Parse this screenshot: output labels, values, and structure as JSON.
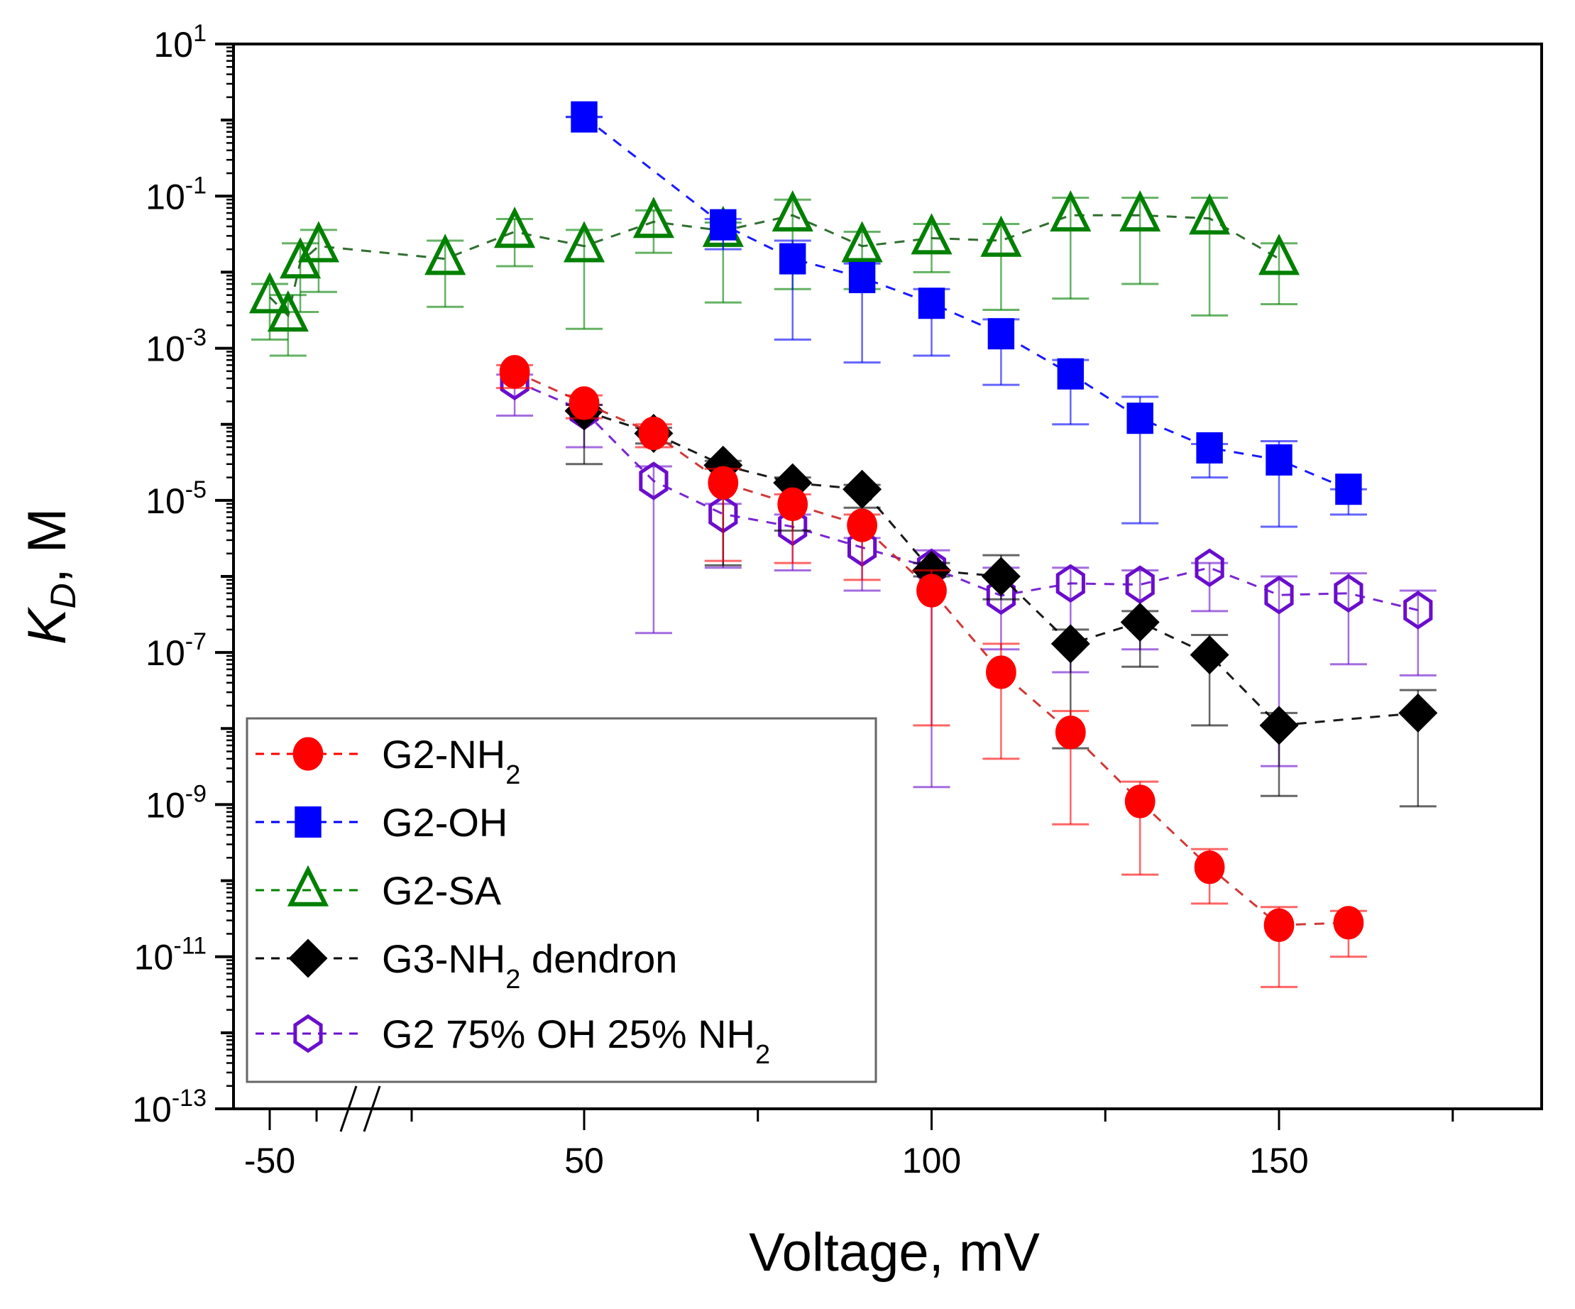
{
  "chart_data": {
    "type": "scatter",
    "title": "",
    "xlabel": "Voltage, mV",
    "ylabel": "K_D, M",
    "ylabel_main": "K",
    "ylabel_sub": "D",
    "ylabel_rest": ", M",
    "yscale": "log",
    "ylim": [
      1e-13,
      10
    ],
    "xlim": [
      -55,
      190
    ],
    "x_axis_break": "between -40 and 25",
    "grid": false,
    "legend_position": "bottom-left",
    "x_ticks": [
      {
        "value": -50,
        "label": "-50"
      },
      {
        "value": 50,
        "label": "50"
      },
      {
        "value": 100,
        "label": "100"
      },
      {
        "value": 150,
        "label": "150"
      }
    ],
    "y_ticks": [
      {
        "exp": 1,
        "base": "10",
        "sup": "1"
      },
      {
        "exp": -1,
        "base": "10",
        "sup": "-1"
      },
      {
        "exp": -3,
        "base": "10",
        "sup": "-3"
      },
      {
        "exp": -5,
        "base": "10",
        "sup": "-5"
      },
      {
        "exp": -7,
        "base": "10",
        "sup": "-7"
      },
      {
        "exp": -9,
        "base": "10",
        "sup": "-9"
      },
      {
        "exp": -11,
        "base": "10",
        "sup": "-11"
      },
      {
        "exp": -13,
        "base": "10",
        "sup": "-13"
      }
    ],
    "series": [
      {
        "name": "G2-NH2",
        "label_main": "G2-NH",
        "label_sub": "2",
        "label_rest": "",
        "marker": "circle-filled",
        "color": "#ff0000",
        "x": [
          40,
          50,
          60,
          70,
          80,
          90,
          100,
          110,
          120,
          130,
          140,
          150,
          160
        ],
        "y": [
          0.00049,
          0.00019,
          7.6e-05,
          1.7e-05,
          8.9e-06,
          4.7e-06,
          6.5e-07,
          5.5e-08,
          8.9e-09,
          1.1e-09,
          1.5e-10,
          2.6e-11,
          2.8e-11
        ],
        "y_err_high": [
          0.0006,
          0.00024,
          0.0001,
          2.6e-05,
          1.2e-05,
          6.5e-06,
          1.2e-06,
          1.3e-07,
          1.7e-08,
          2e-09,
          2.6e-10,
          4.5e-11,
          4e-11
        ],
        "y_err_low": [
          0.0003,
          0.00012,
          5e-05,
          1.6e-06,
          1.5e-06,
          9e-07,
          1.1e-08,
          4e-09,
          5.5e-10,
          1.2e-10,
          5e-11,
          4e-12,
          1e-11
        ]
      },
      {
        "name": "G2-OH",
        "label_main": "G2-OH",
        "label_sub": "",
        "label_rest": "",
        "marker": "square-filled",
        "color": "#0000ff",
        "x": [
          50,
          70,
          80,
          90,
          100,
          110,
          120,
          130,
          140,
          150,
          160
        ],
        "y": [
          1.1,
          0.042,
          0.015,
          0.0085,
          0.0039,
          0.00155,
          0.00046,
          0.00012,
          4.9e-05,
          3.4e-05,
          1.4e-05
        ],
        "y_err_high": [
          1.1,
          0.05,
          0.026,
          0.013,
          0.006,
          0.0024,
          0.0007,
          0.00023,
          5.5e-05,
          6e-05,
          1.4e-05
        ],
        "y_err_low": [
          1.1,
          0.02,
          0.0013,
          0.00065,
          0.0008,
          0.00033,
          0.0001,
          5e-06,
          2e-05,
          4.5e-06,
          6.5e-06
        ]
      },
      {
        "name": "G2-SA",
        "label_main": "G2-SA",
        "label_sub": "",
        "label_rest": "",
        "marker": "triangle-open",
        "color": "#008000",
        "x": [
          -50,
          -47,
          -45,
          -42,
          30,
          40,
          50,
          60,
          70,
          80,
          90,
          100,
          110,
          120,
          130,
          140,
          150
        ],
        "y": [
          0.0047,
          0.0027,
          0.0135,
          0.022,
          0.015,
          0.034,
          0.022,
          0.046,
          0.035,
          0.056,
          0.022,
          0.028,
          0.026,
          0.056,
          0.056,
          0.051,
          0.015
        ],
        "y_err_high": [
          0.007,
          0.005,
          0.024,
          0.036,
          0.026,
          0.05,
          0.036,
          0.065,
          0.045,
          0.09,
          0.034,
          0.043,
          0.043,
          0.095,
          0.095,
          0.095,
          0.024
        ],
        "y_err_low": [
          0.0013,
          0.0008,
          0.003,
          0.0055,
          0.0035,
          0.012,
          0.0018,
          0.018,
          0.004,
          0.006,
          0.006,
          0.01,
          0.0032,
          0.0045,
          0.007,
          0.0027,
          0.0038
        ]
      },
      {
        "name": "G3-NH2 dendron",
        "label_main": "G3-NH",
        "label_sub": "2",
        "label_rest": " dendron",
        "marker": "diamond-filled",
        "color": "#000000",
        "x": [
          50,
          60,
          70,
          80,
          90,
          100,
          110,
          120,
          130,
          140,
          150,
          170
        ],
        "y": [
          0.00015,
          7.6e-05,
          2.9e-05,
          1.7e-05,
          1.4e-05,
          1.2e-06,
          1e-06,
          1.3e-07,
          2.5e-07,
          9.3e-08,
          1.1e-08,
          1.6e-08
        ],
        "y_err_high": [
          0.00018,
          9e-05,
          3.3e-05,
          2e-05,
          1.6e-05,
          1.5e-06,
          1.9e-06,
          2e-07,
          3.5e-07,
          1.7e-07,
          1.6e-08,
          3.2e-08
        ],
        "y_err_low": [
          3e-05,
          5.6e-05,
          1.4e-06,
          4e-06,
          8e-06,
          1e-06,
          5e-07,
          5.5e-09,
          6.5e-08,
          1.1e-08,
          1.3e-09,
          9.5e-10
        ]
      },
      {
        "name": "G2 75% OH 25% NH2",
        "label_main": "G2 75% OH 25% NH",
        "label_sub": "2",
        "label_rest": "",
        "marker": "hexagon-open",
        "color": "#6a0dcc",
        "x": [
          40,
          50,
          60,
          70,
          80,
          90,
          100,
          110,
          120,
          130,
          140,
          150,
          160,
          170
        ],
        "y": [
          0.00037,
          0.00015,
          1.8e-05,
          6.6e-06,
          4.5e-06,
          2.4e-06,
          1.3e-06,
          5.6e-07,
          8.1e-07,
          7.8e-07,
          1.3e-06,
          5.7e-07,
          6e-07,
          3.6e-07
        ],
        "y_err_high": [
          0.00045,
          0.00018,
          2.8e-05,
          9e-06,
          6.5e-06,
          3.2e-06,
          2.2e-06,
          1.3e-06,
          1.3e-06,
          1.2e-06,
          1.5e-06,
          1e-06,
          1.1e-06,
          6.5e-07
        ],
        "y_err_low": [
          0.00013,
          5e-05,
          1.8e-07,
          1.3e-06,
          1.2e-06,
          6.5e-07,
          1.7e-09,
          1.1e-07,
          5.5e-08,
          1.1e-07,
          3.5e-07,
          3.2e-09,
          7e-08,
          5e-08
        ]
      }
    ]
  }
}
